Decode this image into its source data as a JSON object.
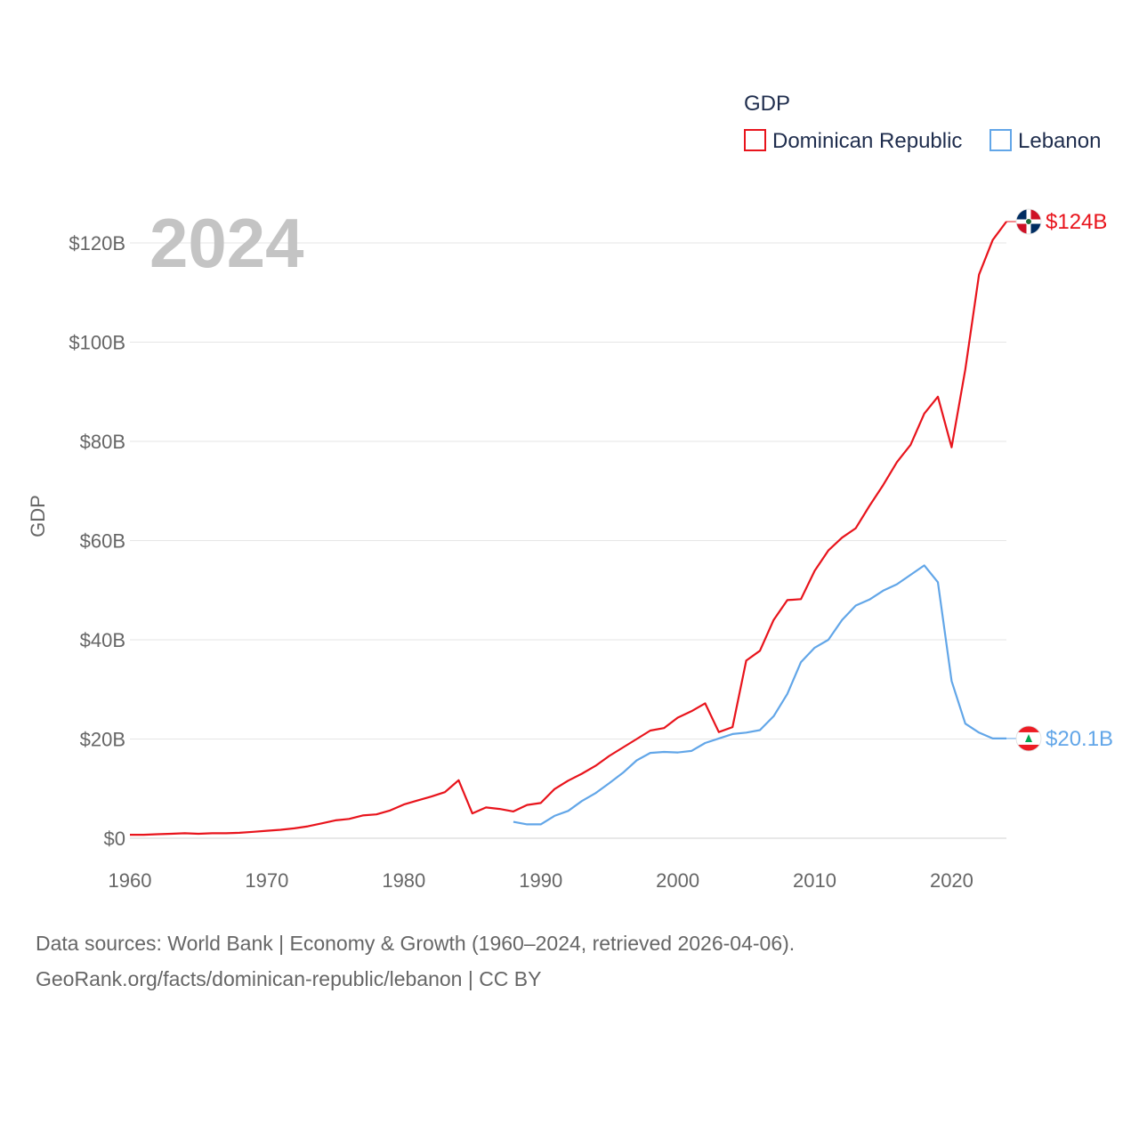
{
  "chart_data": {
    "type": "line",
    "legend_title": "GDP",
    "ylabel": "GDP",
    "xlabel": "",
    "year_label": "2024",
    "xlim": [
      1960,
      2024
    ],
    "ylim": [
      0,
      130
    ],
    "x_ticks": [
      1960,
      1970,
      1980,
      1990,
      2000,
      2010,
      2020
    ],
    "x_tick_labels": [
      "1960",
      "1970",
      "1980",
      "1990",
      "2000",
      "2010",
      "2020"
    ],
    "y_ticks": [
      0,
      20,
      40,
      60,
      80,
      100,
      120
    ],
    "y_tick_labels": [
      "$0",
      "$20B",
      "$40B",
      "$60B",
      "$80B",
      "$100B",
      "$120B"
    ],
    "grid": true,
    "legend_position": "top-right",
    "series": [
      {
        "name": "Dominican Republic",
        "color": "#e8141c",
        "flag_icon": "dominican-republic-flag-icon",
        "end_label": "$124B",
        "x": [
          1960,
          1961,
          1962,
          1963,
          1964,
          1965,
          1966,
          1967,
          1968,
          1969,
          1970,
          1971,
          1972,
          1973,
          1974,
          1975,
          1976,
          1977,
          1978,
          1979,
          1980,
          1981,
          1982,
          1983,
          1984,
          1985,
          1986,
          1987,
          1988,
          1989,
          1990,
          1991,
          1992,
          1993,
          1994,
          1995,
          1996,
          1997,
          1998,
          1999,
          2000,
          2001,
          2002,
          2003,
          2004,
          2005,
          2006,
          2007,
          2008,
          2009,
          2010,
          2011,
          2012,
          2013,
          2014,
          2015,
          2016,
          2017,
          2018,
          2019,
          2020,
          2021,
          2022,
          2023,
          2024
        ],
        "values": [
          0.7,
          0.7,
          0.8,
          0.9,
          1.0,
          0.9,
          1.0,
          1.0,
          1.1,
          1.3,
          1.5,
          1.7,
          2.0,
          2.4,
          3.0,
          3.6,
          3.9,
          4.6,
          4.8,
          5.6,
          6.8,
          7.6,
          8.4,
          9.3,
          11.7,
          5.0,
          6.2,
          5.9,
          5.4,
          6.7,
          7.1,
          9.9,
          11.6,
          13.0,
          14.6,
          16.6,
          18.3,
          20.0,
          21.7,
          22.2,
          24.3,
          25.6,
          27.2,
          21.4,
          22.4,
          35.8,
          37.8,
          44.0,
          48.0,
          48.2,
          53.9,
          58.0,
          60.6,
          62.5,
          67.0,
          71.2,
          75.8,
          79.3,
          85.6,
          89.0,
          78.8,
          94.5,
          113.6,
          120.6,
          124.3
        ]
      },
      {
        "name": "Lebanon",
        "color": "#62a6e8",
        "flag_icon": "lebanon-flag-icon",
        "end_label": "$20.1B",
        "x": [
          1988,
          1989,
          1990,
          1991,
          1992,
          1993,
          1994,
          1995,
          1996,
          1997,
          1998,
          1999,
          2000,
          2001,
          2002,
          2003,
          2004,
          2005,
          2006,
          2007,
          2008,
          2009,
          2010,
          2011,
          2012,
          2013,
          2014,
          2015,
          2016,
          2017,
          2018,
          2019,
          2020,
          2021,
          2022,
          2023,
          2024
        ],
        "values": [
          3.3,
          2.8,
          2.8,
          4.5,
          5.5,
          7.5,
          9.1,
          11.1,
          13.2,
          15.7,
          17.2,
          17.4,
          17.3,
          17.6,
          19.2,
          20.1,
          21.0,
          21.3,
          21.8,
          24.6,
          29.1,
          35.5,
          38.4,
          40.0,
          44.0,
          46.9,
          48.1,
          49.9,
          51.2,
          53.1,
          55.0,
          51.6,
          31.7,
          23.1,
          21.3,
          20.1,
          20.1
        ]
      }
    ]
  },
  "source": {
    "line1": "Data sources: World Bank | Economy & Growth (1960–2024, retrieved 2026-04-06).",
    "line2": "GeoRank.org/facts/dominican-republic/lebanon | CC BY"
  }
}
